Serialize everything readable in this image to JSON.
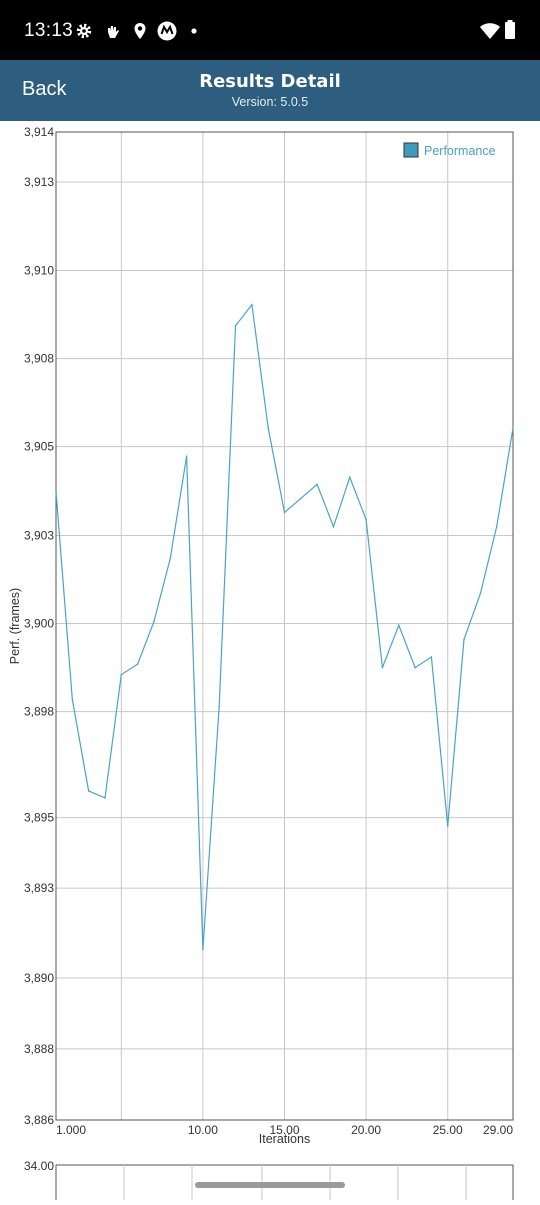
{
  "status_bar": {
    "time": "13:13",
    "icons": [
      "gear-icon",
      "hand-icon",
      "location-icon",
      "motorola-icon",
      "dot-icon",
      "wifi-icon",
      "battery-icon"
    ]
  },
  "header": {
    "back_label": "Back",
    "title": "Results Detail",
    "version": "Version: 5.0.5",
    "background": "#2d5e7f"
  },
  "chart_data": [
    {
      "type": "line",
      "xlabel": "Iterations",
      "ylabel": "Perf. (frames)",
      "series": [
        {
          "name": "Performance",
          "color": "#4aa3c8",
          "x": [
            1,
            2,
            3,
            4,
            5,
            6,
            7,
            8,
            9,
            10,
            11,
            12,
            13,
            14,
            15,
            16,
            17,
            18,
            19,
            20,
            21,
            22,
            23,
            24,
            25,
            26,
            27,
            28,
            29
          ],
          "y": [
            3903.8,
            3897.9,
            3895.3,
            3895.1,
            3898.6,
            3898.9,
            3900.1,
            3901.9,
            3904.8,
            3890.8,
            3897.7,
            3908.5,
            3909.1,
            3905.6,
            3903.2,
            3903.6,
            3904.0,
            3902.8,
            3904.2,
            3903.0,
            3898.8,
            3900.0,
            3898.8,
            3899.1,
            3894.3,
            3899.6,
            3900.9,
            3902.8,
            3905.6
          ]
        }
      ],
      "x_ticks": [
        "1.000",
        "10.00",
        "15.00",
        "20.00",
        "25.00",
        "29.00"
      ],
      "x_tick_positions": [
        1,
        10,
        15,
        20,
        25,
        29
      ],
      "y_ticks": [
        "3,886",
        "3,888",
        "3,890",
        "3,893",
        "3,895",
        "3,898",
        "3,900",
        "3,903",
        "3,905",
        "3,908",
        "3,910",
        "3,913",
        "3,914"
      ],
      "y_tick_values": [
        3885.96,
        3887.98,
        3889.99,
        3892.54,
        3894.54,
        3897.55,
        3900.05,
        3902.55,
        3905.07,
        3907.57,
        3910.07,
        3912.58,
        3914.0
      ],
      "xlim": [
        1,
        29
      ],
      "ylim": [
        3885.96,
        3914.0
      ],
      "grid": true,
      "legend": "top-right"
    },
    {
      "type": "line",
      "y_ticks": [
        "34.00"
      ],
      "note_partially_visible": true
    }
  ]
}
